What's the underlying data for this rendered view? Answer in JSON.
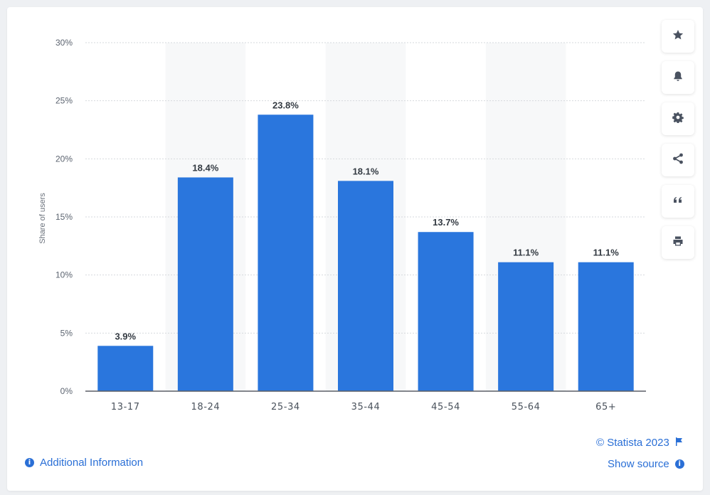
{
  "chart_data": {
    "type": "bar",
    "categories": [
      "13-17",
      "18-24",
      "25-34",
      "35-44",
      "45-54",
      "55-64",
      "65+"
    ],
    "values": [
      3.9,
      18.4,
      23.8,
      18.1,
      13.7,
      11.1,
      11.1
    ],
    "value_labels": [
      "3.9%",
      "18.4%",
      "23.8%",
      "18.1%",
      "13.7%",
      "11.1%",
      "11.1%"
    ],
    "ylabel": "Share of users",
    "xlabel": "",
    "ylim": [
      0,
      30
    ],
    "yticks": [
      0,
      5,
      10,
      15,
      20,
      25,
      30
    ],
    "ytick_labels": [
      "0%",
      "5%",
      "10%",
      "15%",
      "20%",
      "25%",
      "30%"
    ],
    "grid": true,
    "bar_color": "#2a76dd"
  },
  "toolbar": {
    "icons": [
      "star-icon",
      "bell-icon",
      "gear-icon",
      "share-icon",
      "quote-icon",
      "print-icon"
    ]
  },
  "footer": {
    "copyright": "© Statista 2023",
    "show_source": "Show source",
    "additional_info": "Additional Information"
  },
  "colors": {
    "accent": "#2a6fd6",
    "band": "#f7f8f9",
    "axis": "#5a5f66",
    "grid": "#d6d9dd"
  }
}
